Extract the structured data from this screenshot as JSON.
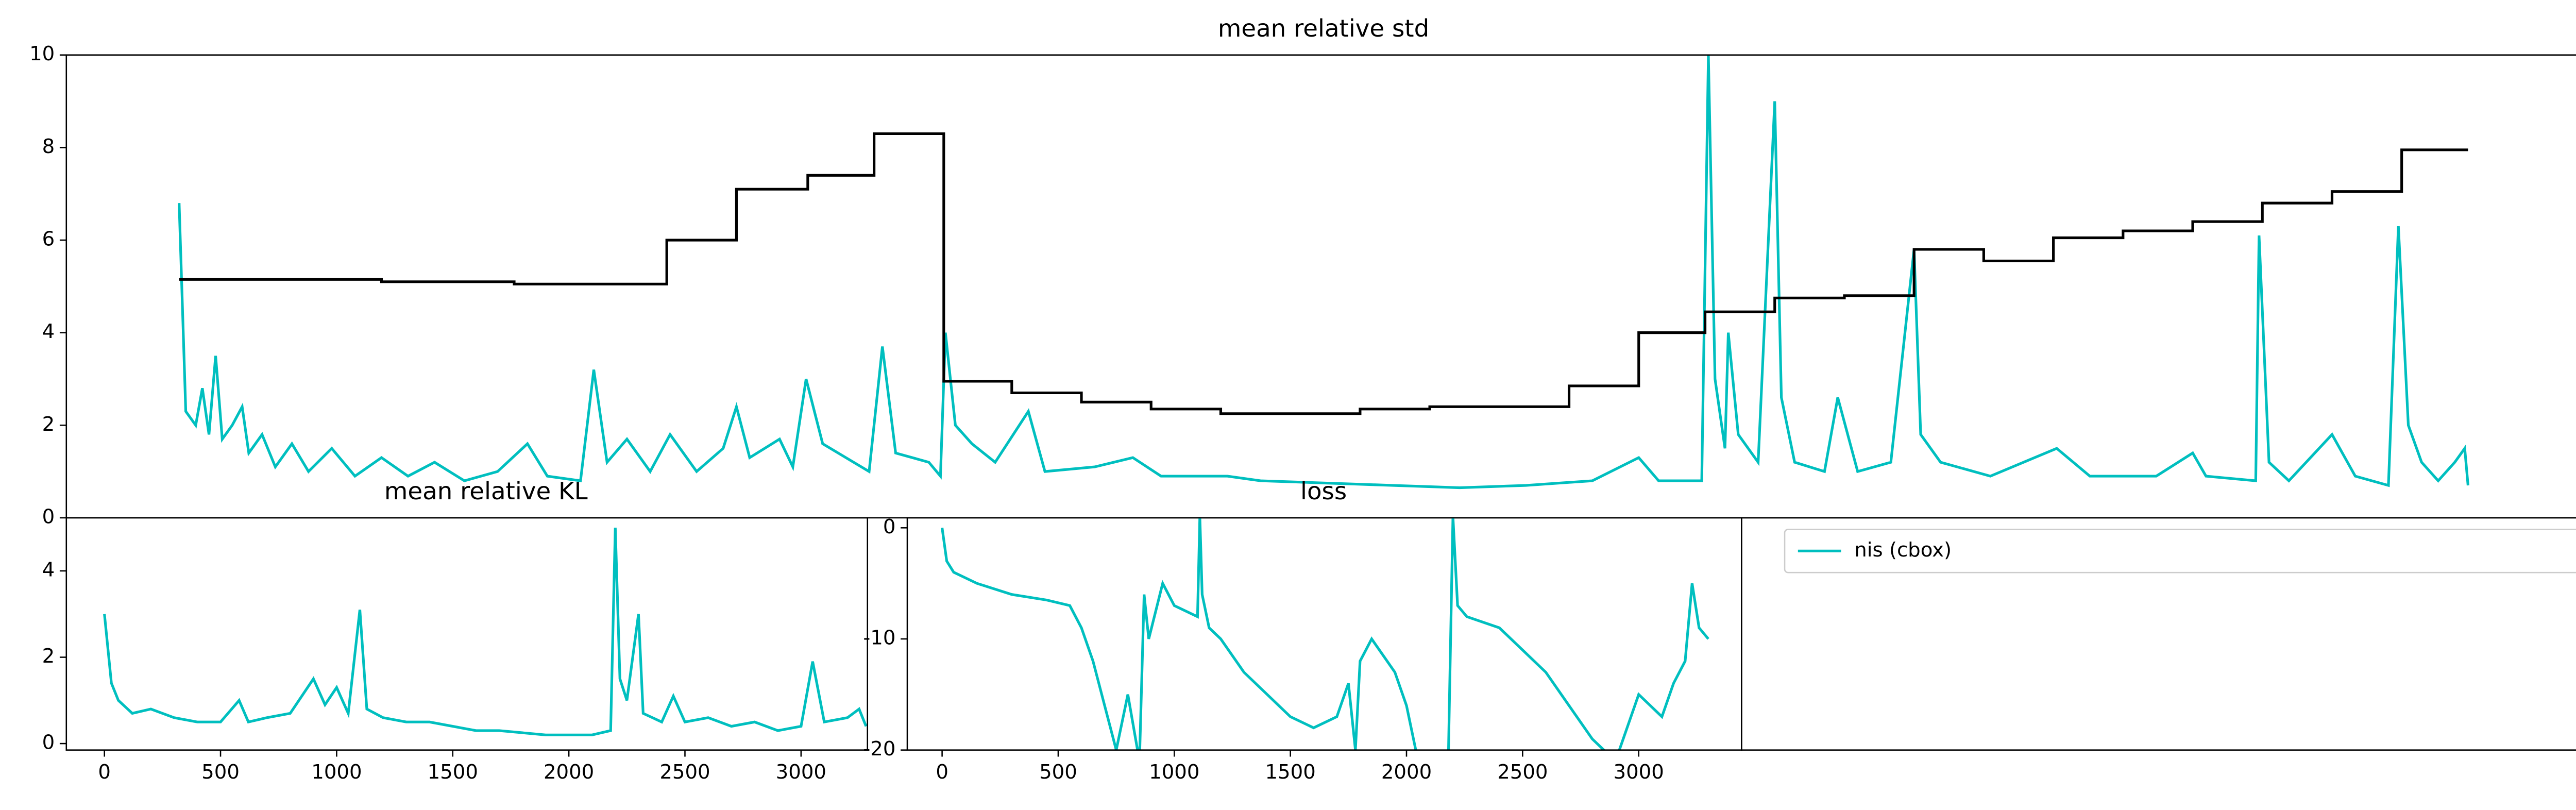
{
  "chart_data": [
    {
      "type": "line",
      "title": "mean relative std",
      "xlim": [
        0,
        1515
      ],
      "ylim": [
        0,
        10
      ],
      "yticks": [
        0,
        2,
        4,
        6,
        8,
        10
      ],
      "series": [
        {
          "color": "#00bfbf",
          "x": [
            68,
            72,
            78,
            82,
            86,
            90,
            94,
            100,
            106,
            110,
            118,
            126,
            136,
            146,
            160,
            174,
            190,
            206,
            222,
            240,
            260,
            278,
            290,
            310,
            318,
            326,
            338,
            352,
            364,
            380,
            396,
            404,
            412,
            430,
            438,
            446,
            456,
            470,
            484,
            492,
            500,
            520,
            527,
            530,
            536,
            546,
            560,
            580,
            590,
            620,
            643,
            660,
            700,
            720,
            760,
            800,
            840,
            880,
            920,
            948,
            960,
            986,
            990,
            994,
            1000,
            1002,
            1008,
            1020,
            1030,
            1034,
            1042,
            1060,
            1068,
            1080,
            1100,
            1114,
            1118,
            1130,
            1160,
            1200,
            1220,
            1260,
            1282,
            1290,
            1320,
            1322,
            1328,
            1340,
            1366,
            1380,
            1400,
            1406,
            1412,
            1420,
            1430,
            1440,
            1446,
            1448
          ],
          "values": [
            6.8,
            2.3,
            2.0,
            2.8,
            1.8,
            3.5,
            1.7,
            2.0,
            2.4,
            1.4,
            1.8,
            1.1,
            1.6,
            1.0,
            1.5,
            0.9,
            1.3,
            0.9,
            1.2,
            0.8,
            1.0,
            1.6,
            0.9,
            0.8,
            3.2,
            1.2,
            1.7,
            1.0,
            1.8,
            1.0,
            1.5,
            2.4,
            1.3,
            1.7,
            1.1,
            3.0,
            1.6,
            1.3,
            1.0,
            3.7,
            1.4,
            1.2,
            0.9,
            4.0,
            2.0,
            1.6,
            1.2,
            2.3,
            1.0,
            1.1,
            1.3,
            0.9,
            0.9,
            0.8,
            0.75,
            0.7,
            0.65,
            0.7,
            0.8,
            1.3,
            0.8,
            0.8,
            10,
            3.0,
            1.5,
            4.0,
            1.8,
            1.2,
            9.0,
            2.6,
            1.2,
            1.0,
            2.6,
            1.0,
            1.2,
            5.8,
            1.8,
            1.2,
            0.9,
            1.5,
            0.9,
            0.9,
            1.4,
            0.9,
            0.8,
            6.1,
            1.2,
            0.8,
            1.8,
            0.9,
            0.7,
            6.3,
            2.0,
            1.2,
            0.8,
            1.2,
            1.5,
            0.7
          ]
        },
        {
          "color": "#000000",
          "drawstyle": "steps-post",
          "x": [
            68,
            190,
            270,
            350,
            362,
            404,
            447,
            487,
            529,
            570,
            612,
            654,
            696,
            738,
            780,
            822,
            864,
            906,
            948,
            988,
            1030,
            1072,
            1114,
            1156,
            1198,
            1240,
            1282,
            1324,
            1366,
            1408,
            1448
          ],
          "values": [
            5.15,
            5.1,
            5.05,
            5.05,
            6.0,
            7.1,
            7.4,
            8.3,
            2.95,
            2.7,
            2.5,
            2.35,
            2.25,
            2.25,
            2.35,
            2.4,
            2.4,
            2.85,
            4.0,
            4.45,
            4.75,
            4.8,
            5.8,
            5.55,
            6.05,
            6.2,
            6.4,
            6.8,
            7.05,
            7.95,
            7.95
          ]
        }
      ]
    },
    {
      "type": "line",
      "title": "mean relative KL",
      "xlim": [
        -164,
        3286
      ],
      "ylim": [
        -0.15,
        5.23
      ],
      "yticks": [
        0,
        2,
        4
      ],
      "xticks": [
        0,
        500,
        1000,
        1500,
        2000,
        2500,
        3000
      ],
      "series": [
        {
          "color": "#00bfbf",
          "x": [
            0,
            30,
            60,
            120,
            200,
            300,
            400,
            500,
            580,
            620,
            700,
            800,
            900,
            950,
            1000,
            1050,
            1100,
            1130,
            1200,
            1300,
            1400,
            1500,
            1600,
            1700,
            1800,
            1900,
            2000,
            2100,
            2180,
            2200,
            2220,
            2250,
            2300,
            2320,
            2400,
            2450,
            2500,
            2600,
            2700,
            2800,
            2900,
            3000,
            3050,
            3100,
            3200,
            3250,
            3280
          ],
          "values": [
            3.0,
            1.4,
            1.0,
            0.7,
            0.8,
            0.6,
            0.5,
            0.5,
            1.0,
            0.5,
            0.6,
            0.7,
            1.5,
            0.9,
            1.3,
            0.7,
            3.1,
            0.8,
            0.6,
            0.5,
            0.5,
            0.4,
            0.3,
            0.3,
            0.25,
            0.2,
            0.2,
            0.2,
            0.3,
            5.0,
            1.5,
            1.0,
            3.0,
            0.7,
            0.5,
            1.1,
            0.5,
            0.6,
            0.4,
            0.5,
            0.3,
            0.4,
            1.9,
            0.5,
            0.6,
            0.8,
            0.4
          ]
        }
      ]
    },
    {
      "type": "line",
      "title": "loss",
      "xlim": [
        -150,
        3443
      ],
      "ylim": [
        -20,
        0.9
      ],
      "yticks": [
        -20,
        -10,
        0
      ],
      "xticks": [
        0,
        500,
        1000,
        1500,
        2000,
        2500,
        3000
      ],
      "series": [
        {
          "color": "#00bfbf",
          "x": [
            0,
            20,
            50,
            150,
            300,
            450,
            550,
            600,
            650,
            700,
            750,
            800,
            850,
            870,
            890,
            950,
            1000,
            1100,
            1110,
            1120,
            1150,
            1200,
            1300,
            1400,
            1500,
            1600,
            1700,
            1750,
            1780,
            1800,
            1850,
            1950,
            2000,
            2050,
            2180,
            2200,
            2220,
            2260,
            2400,
            2500,
            2600,
            2700,
            2800,
            2900,
            3000,
            3100,
            3150,
            3200,
            3230,
            3260,
            3300
          ],
          "values": [
            0,
            -3,
            -4,
            -5,
            -6,
            -6.5,
            -7,
            -9,
            -12,
            -16,
            -20,
            -15,
            -21,
            -6,
            -10,
            -5,
            -7,
            -8,
            1,
            -6,
            -9,
            -10,
            -13,
            -15,
            -17,
            -18,
            -17,
            -14,
            -20,
            -12,
            -10,
            -13,
            -16,
            -21,
            -21,
            1,
            -7,
            -8,
            -9,
            -11,
            -13,
            -16,
            -19,
            -21,
            -15,
            -17,
            -14,
            -12,
            -5,
            -9,
            -10
          ]
        }
      ]
    }
  ],
  "legend": {
    "loc": "upper left",
    "entries": [
      {
        "name": "nis (cbox)",
        "color": "#00bfbf"
      }
    ]
  }
}
